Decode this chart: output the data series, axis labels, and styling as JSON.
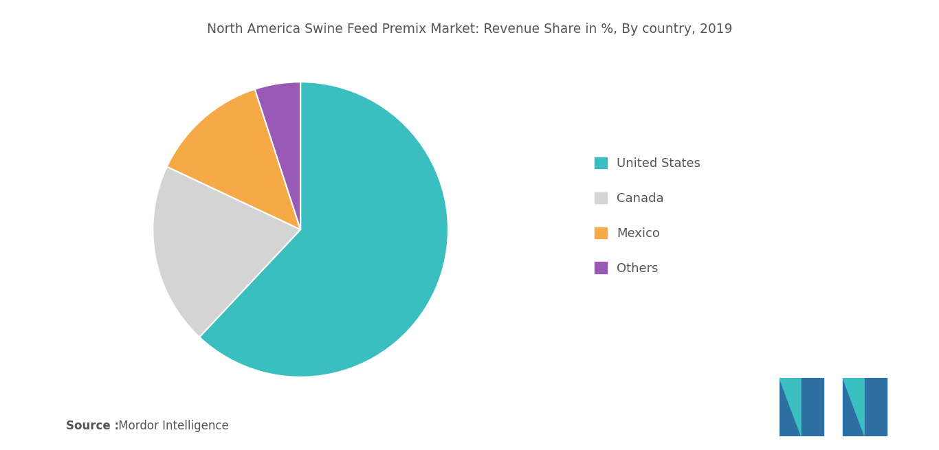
{
  "title": "North America Swine Feed Premix Market: Revenue Share in %, By country, 2019",
  "labels": [
    "United States",
    "Canada",
    "Mexico",
    "Others"
  ],
  "values": [
    62,
    20,
    13,
    5
  ],
  "colors": [
    "#3bbec0",
    "#d4d4d4",
    "#f5a947",
    "#9b59b6"
  ],
  "legend_labels": [
    "United States",
    "Canada",
    "Mexico",
    "Others"
  ],
  "source_bold": "Source :",
  "source_normal": " Mordor Intelligence",
  "background_color": "#ffffff",
  "title_fontsize": 13.5,
  "legend_fontsize": 13,
  "source_fontsize": 12,
  "startangle": 90,
  "text_color": "#555555",
  "logo_dark": "#2d6fa3",
  "logo_light": "#3bbfc0"
}
